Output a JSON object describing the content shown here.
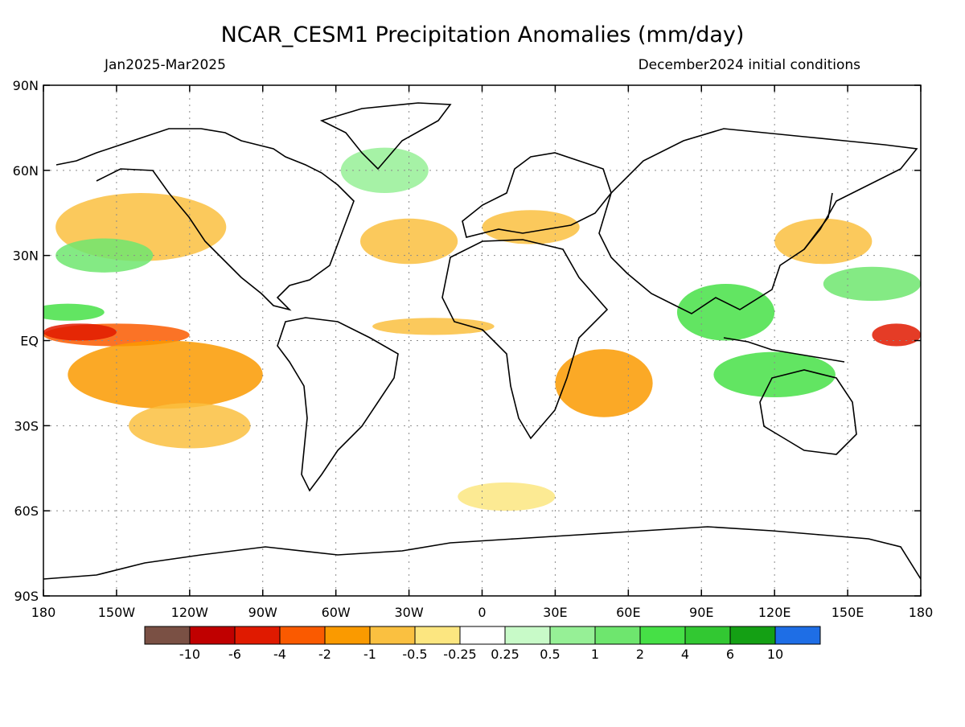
{
  "header": {
    "title": "NCAR_CESM1 Precipitation Anomalies (mm/day)",
    "period": "Jan2025-Mar2025",
    "init": "December2024 initial conditions"
  },
  "axes": {
    "lat_ticks": [
      "90N",
      "60N",
      "30N",
      "EQ",
      "30S",
      "60S",
      "90S"
    ],
    "lon_ticks": [
      "180",
      "150W",
      "120W",
      "90W",
      "60W",
      "30W",
      "0",
      "30E",
      "60E",
      "90E",
      "120E",
      "150E",
      "180"
    ]
  },
  "colorbar": {
    "colors": [
      "#7a5044",
      "#c00000",
      "#e01a00",
      "#fa5a00",
      "#fa9a00",
      "#fac040",
      "#fce680",
      "#ffffff",
      "#c8fac8",
      "#96f096",
      "#6ee66e",
      "#46e046",
      "#32c832",
      "#14a014",
      "#1e6ee6"
    ],
    "labels": [
      "-10",
      "-6",
      "-4",
      "-2",
      "-1",
      "-0.5",
      "-0.25",
      "0.25",
      "0.5",
      "1",
      "2",
      "4",
      "6",
      "10"
    ]
  },
  "map_data": {
    "lon_range": [
      -180,
      180
    ],
    "lat_range": [
      -90,
      90
    ],
    "anomaly_regions": [
      {
        "lon": -150,
        "lat": 2,
        "rx": 30,
        "ry": 4,
        "color": "#fa5a00"
      },
      {
        "lon": -165,
        "lat": 3,
        "rx": 15,
        "ry": 3,
        "color": "#e01a00"
      },
      {
        "lon": -130,
        "lat": -12,
        "rx": 40,
        "ry": 12,
        "color": "#fa9a00"
      },
      {
        "lon": -120,
        "lat": -30,
        "rx": 25,
        "ry": 8,
        "color": "#fac040"
      },
      {
        "lon": -140,
        "lat": 40,
        "rx": 35,
        "ry": 12,
        "color": "#fac040"
      },
      {
        "lon": -155,
        "lat": 30,
        "rx": 20,
        "ry": 6,
        "color": "#6ee66e"
      },
      {
        "lon": -170,
        "lat": 10,
        "rx": 15,
        "ry": 3,
        "color": "#46e046"
      },
      {
        "lon": -40,
        "lat": 60,
        "rx": 18,
        "ry": 8,
        "color": "#96f096"
      },
      {
        "lon": -30,
        "lat": 35,
        "rx": 20,
        "ry": 8,
        "color": "#fac040"
      },
      {
        "lon": -20,
        "lat": 5,
        "rx": 25,
        "ry": 3,
        "color": "#fac040"
      },
      {
        "lon": 50,
        "lat": -15,
        "rx": 20,
        "ry": 12,
        "color": "#fa9a00"
      },
      {
        "lon": 100,
        "lat": 10,
        "rx": 20,
        "ry": 10,
        "color": "#46e046"
      },
      {
        "lon": 120,
        "lat": -12,
        "rx": 25,
        "ry": 8,
        "color": "#46e046"
      },
      {
        "lon": 140,
        "lat": 35,
        "rx": 20,
        "ry": 8,
        "color": "#fac040"
      },
      {
        "lon": 170,
        "lat": 2,
        "rx": 10,
        "ry": 4,
        "color": "#e01a00"
      },
      {
        "lon": 160,
        "lat": 20,
        "rx": 20,
        "ry": 6,
        "color": "#6ee66e"
      },
      {
        "lon": 20,
        "lat": 40,
        "rx": 20,
        "ry": 6,
        "color": "#fac040"
      },
      {
        "lon": 10,
        "lat": -55,
        "rx": 20,
        "ry": 5,
        "color": "#fce680"
      }
    ]
  }
}
